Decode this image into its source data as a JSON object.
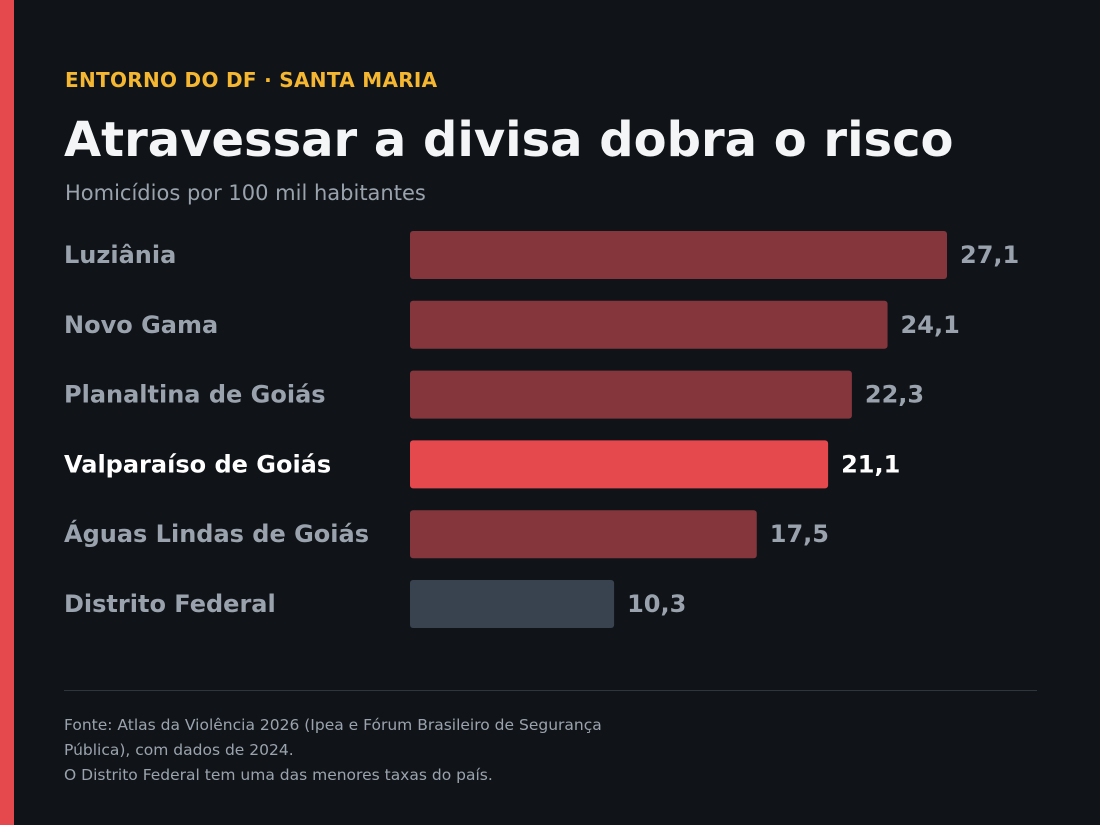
{
  "kicker": "ENTORNO DO DF · SANTA MARIA",
  "title": "Atravessar a divisa dobra o risco",
  "subtitle": "Homicídios por 100 mil habitantes",
  "colors": {
    "background": "#101418",
    "accent": "#e5484d",
    "kicker": "#f5b731",
    "bar_default": "#84363c",
    "bar_highlight": "#e5484d",
    "bar_reference": "#38434f",
    "label_default": "#9aa3ad",
    "label_highlight": "#ffffff"
  },
  "chart_data": {
    "type": "bar",
    "orientation": "horizontal",
    "categories": [
      "Luziânia",
      "Novo Gama",
      "Planaltina de Goiás",
      "Valparaíso de Goiás",
      "Águas Lindas de Goiás",
      "Distrito Federal"
    ],
    "values": [
      27.1,
      24.1,
      22.3,
      21.1,
      17.5,
      10.3
    ],
    "value_labels": [
      "27,1",
      "24,1",
      "22,3",
      "21,1",
      "17,5",
      "10,3"
    ],
    "highlight": "Valparaíso de Goiás",
    "reference": "Distrito Federal",
    "xlim": [
      0,
      27.1
    ],
    "grid": false,
    "legend": "none"
  },
  "footer": {
    "line1": "Fonte: Atlas da Violência 2026 (Ipea e Fórum Brasileiro de Segurança",
    "line2": "Pública), com dados de 2024.",
    "line3": "O Distrito Federal tem uma das menores taxas do país."
  }
}
